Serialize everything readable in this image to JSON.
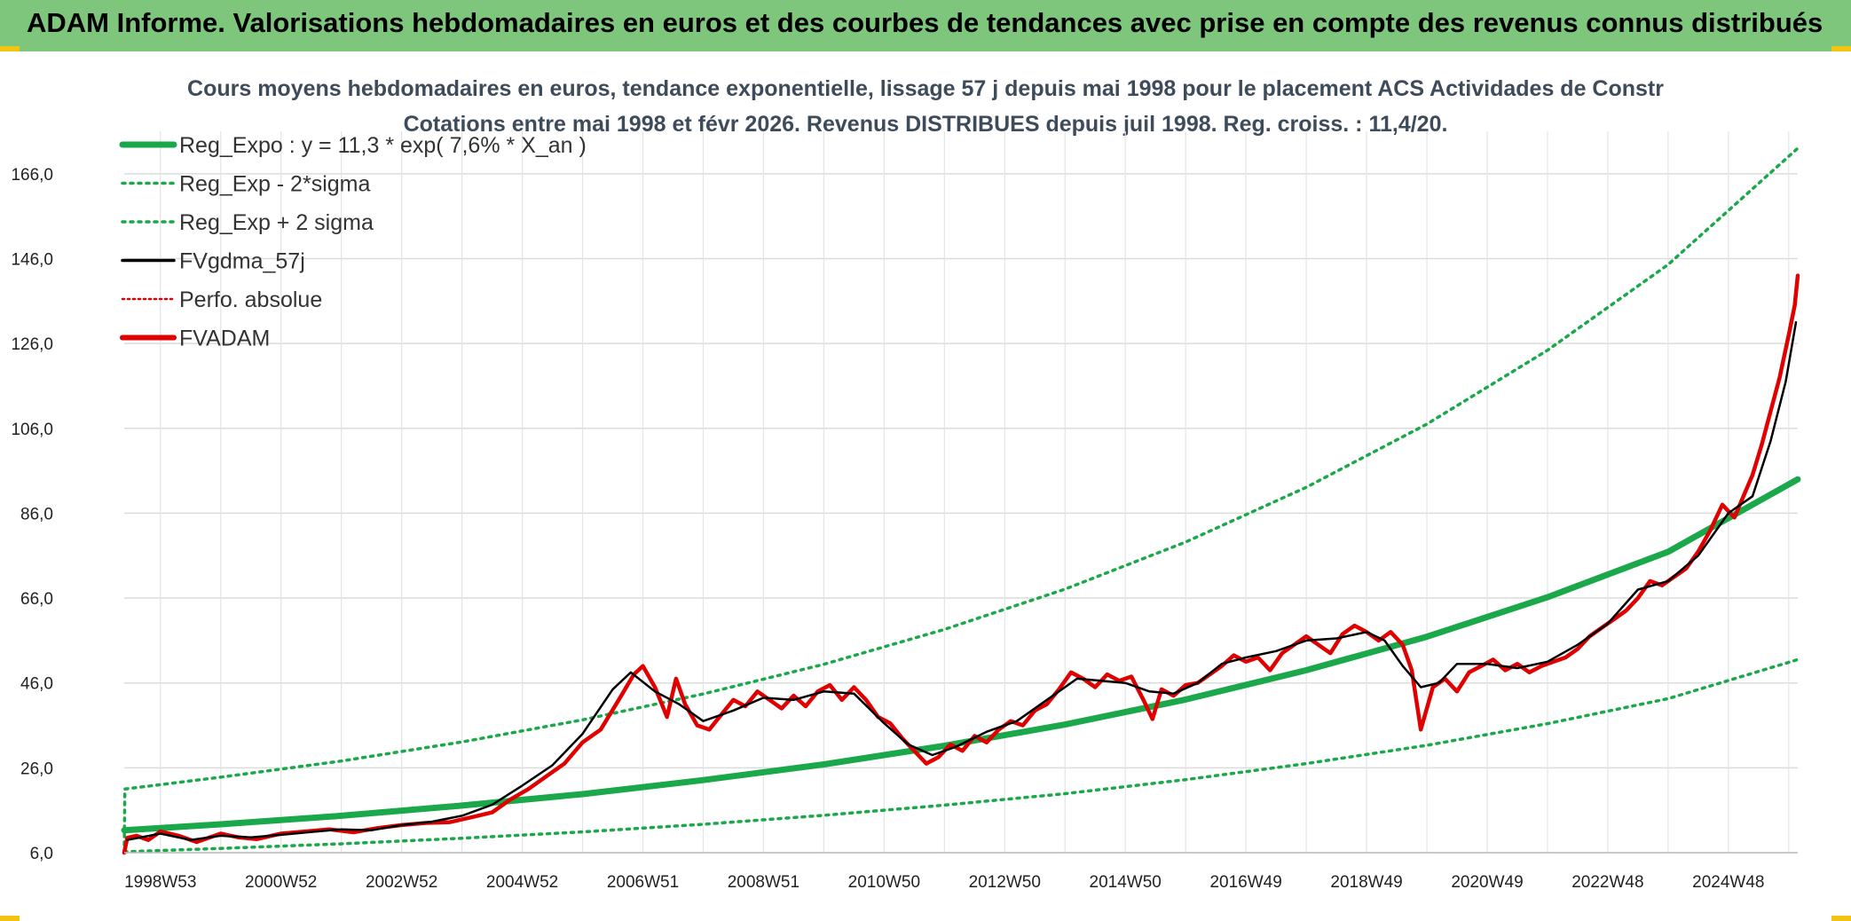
{
  "header": {
    "title": "ADAM Informe. Valorisations hebdomadaires en euros et des courbes de tendances avec prise en compte des revenus connus distribués"
  },
  "chart_data": {
    "type": "line",
    "title": "Cours moyens hebdomadaires en euros, tendance exponentielle, lissage 57 j depuis mai 1998 pour le placement ACS Actividades de Constr",
    "subtitle": "Cotations entre mai 1998 et févr 2026. Revenus DISTRIBUES depuis juil 1998. Reg. croiss. : 11,4/20.",
    "xlabel": "",
    "ylabel": "",
    "xlim": [
      1998.4,
      2026.15
    ],
    "ylim": [
      6,
      176
    ],
    "y_ticks": [
      6,
      26,
      46,
      66,
      86,
      106,
      126,
      146,
      166
    ],
    "y_tick_labels": [
      "6,0",
      "26,0",
      "46,0",
      "66,0",
      "86,0",
      "106,0",
      "126,0",
      "146,0",
      "166,0"
    ],
    "x_ticks": [
      1999.0,
      2001.0,
      2003.0,
      2005.0,
      2007.0,
      2009.0,
      2011.0,
      2013.0,
      2015.0,
      2017.0,
      2019.0,
      2021.0,
      2023.0,
      2025.0
    ],
    "x_tick_labels": [
      "1998W53",
      "2000W52",
      "2002W52",
      "2004W52",
      "2006W51",
      "2008W51",
      "2010W50",
      "2012W50",
      "2014W50",
      "2016W49",
      "2018W49",
      "2020W49",
      "2022W48",
      "2024W48"
    ],
    "grid": true,
    "legend_position": "top-left",
    "legend": [
      {
        "name": "Reg_Expo : y = 11,3 * exp( 7,6% *  X_an )",
        "color": "#1aa84a",
        "style": "solid-thick"
      },
      {
        "name": "Reg_Exp - 2*sigma",
        "color": "#1aa84a",
        "style": "dotted"
      },
      {
        "name": "Reg_Exp + 2 sigma",
        "color": "#1aa84a",
        "style": "dotted"
      },
      {
        "name": "FVgdma_57j",
        "color": "#000000",
        "style": "solid"
      },
      {
        "name": "Perfo. absolue",
        "color": "#e00000",
        "style": "dotted"
      },
      {
        "name": "FVADAM",
        "color": "#e00000",
        "style": "solid-thick"
      }
    ],
    "series": [
      {
        "name": "Reg_Expo : y = 11,3 * exp( 7,6% *  X_an )",
        "x": [
          1998.4,
          2000,
          2002,
          2004,
          2006,
          2008,
          2010,
          2012,
          2014,
          2016,
          2018,
          2020,
          2022,
          2024,
          2026.15
        ],
        "values": [
          11.3,
          12.7,
          14.7,
          17.1,
          19.8,
          23.1,
          26.8,
          31.2,
          36.2,
          42.1,
          49.0,
          56.9,
          66.2,
          76.9,
          94.0
        ]
      },
      {
        "name": "Reg_Exp - 2*sigma",
        "x": [
          1998.4,
          2000,
          2002,
          2004,
          2006,
          2008,
          2010,
          2012,
          2014,
          2016,
          2018,
          2020,
          2022,
          2024,
          2026.15
        ],
        "values": [
          6.2,
          7.0,
          8.1,
          9.4,
          10.9,
          12.7,
          14.8,
          17.2,
          19.9,
          23.2,
          27.0,
          31.3,
          36.4,
          42.3,
          51.5
        ]
      },
      {
        "name": "Reg_Exp + 2 sigma",
        "x": [
          1998.4,
          1998.41,
          2000,
          2002,
          2004,
          2006,
          2008,
          2010,
          2012,
          2014,
          2016,
          2018,
          2020,
          2022,
          2024,
          2026.15
        ],
        "values": [
          6.0,
          21.0,
          23.8,
          27.6,
          32.1,
          37.3,
          43.4,
          50.4,
          58.6,
          68.1,
          79.2,
          92.1,
          107.0,
          124.4,
          144.6,
          172.0
        ]
      },
      {
        "name": "FVgdma_57j",
        "x": [
          1998.45,
          1999.0,
          1999.5,
          2000.0,
          2000.5,
          2001.0,
          2001.5,
          2002.0,
          2002.5,
          2003.0,
          2003.5,
          2004.0,
          2004.5,
          2005.0,
          2005.5,
          2006.0,
          2006.5,
          2006.8,
          2007.2,
          2007.6,
          2008.0,
          2008.5,
          2009.0,
          2009.5,
          2010.0,
          2010.5,
          2011.0,
          2011.4,
          2011.8,
          2012.2,
          2012.7,
          2013.2,
          2013.7,
          2014.2,
          2014.6,
          2015.0,
          2015.4,
          2015.8,
          2016.2,
          2016.6,
          2017.0,
          2017.5,
          2018.0,
          2018.5,
          2019.0,
          2019.3,
          2019.6,
          2019.9,
          2020.2,
          2020.5,
          2021.0,
          2021.5,
          2022.0,
          2022.5,
          2023.0,
          2023.5,
          2024.0,
          2024.5,
          2025.0,
          2025.4,
          2025.7,
          2025.95,
          2026.12
        ],
        "values": [
          9.0,
          10.5,
          9.0,
          10.0,
          9.6,
          10.2,
          10.9,
          11.5,
          11.3,
          12.5,
          13.3,
          14.7,
          17.3,
          21.8,
          26.6,
          34.0,
          44.5,
          48.5,
          44.0,
          41.0,
          37.0,
          39.5,
          42.5,
          42.0,
          44.0,
          43.5,
          36.5,
          31.5,
          29.0,
          31.0,
          34.5,
          37.0,
          42.0,
          47.0,
          46.5,
          46.0,
          44.0,
          43.5,
          46.0,
          50.5,
          52.0,
          53.5,
          56.0,
          56.5,
          58.0,
          56.0,
          50.0,
          45.0,
          46.0,
          50.5,
          50.5,
          49.5,
          51.0,
          55.0,
          60.0,
          68.0,
          70.0,
          76.0,
          86.0,
          90.0,
          103.0,
          117.0,
          131.0
        ]
      },
      {
        "name": "FVADAM",
        "x": [
          1998.4,
          1998.45,
          1998.6,
          1998.8,
          1999.0,
          1999.3,
          1999.6,
          1999.8,
          2000.0,
          2000.3,
          2000.6,
          2001.0,
          2001.4,
          2001.8,
          2002.2,
          2002.6,
          2003.0,
          2003.4,
          2003.8,
          2004.2,
          2004.5,
          2004.8,
          2005.1,
          2005.4,
          2005.7,
          2006.0,
          2006.3,
          2006.6,
          2006.85,
          2007.0,
          2007.2,
          2007.4,
          2007.55,
          2007.7,
          2007.9,
          2008.1,
          2008.3,
          2008.5,
          2008.7,
          2008.9,
          2009.1,
          2009.3,
          2009.5,
          2009.7,
          2009.9,
          2010.1,
          2010.3,
          2010.5,
          2010.7,
          2010.9,
          2011.1,
          2011.3,
          2011.5,
          2011.7,
          2011.9,
          2012.1,
          2012.3,
          2012.5,
          2012.7,
          2012.9,
          2013.1,
          2013.3,
          2013.5,
          2013.7,
          2013.9,
          2014.1,
          2014.3,
          2014.5,
          2014.7,
          2014.9,
          2015.1,
          2015.3,
          2015.45,
          2015.6,
          2015.8,
          2016.0,
          2016.2,
          2016.4,
          2016.6,
          2016.8,
          2017.0,
          2017.2,
          2017.4,
          2017.6,
          2017.8,
          2018.0,
          2018.2,
          2018.4,
          2018.6,
          2018.8,
          2019.0,
          2019.2,
          2019.4,
          2019.6,
          2019.75,
          2019.9,
          2020.1,
          2020.3,
          2020.5,
          2020.7,
          2020.9,
          2021.1,
          2021.3,
          2021.5,
          2021.7,
          2021.9,
          2022.1,
          2022.3,
          2022.5,
          2022.7,
          2022.9,
          2023.1,
          2023.3,
          2023.5,
          2023.7,
          2023.9,
          2024.1,
          2024.3,
          2024.5,
          2024.7,
          2024.9,
          2025.1,
          2025.25,
          2025.4,
          2025.55,
          2025.7,
          2025.85,
          2026.0,
          2026.1,
          2026.15
        ],
        "values": [
          6.0,
          9.5,
          10.0,
          9.0,
          11.0,
          10.0,
          8.5,
          9.5,
          10.5,
          9.6,
          9.2,
          10.5,
          11.0,
          11.5,
          10.8,
          11.8,
          12.5,
          13.0,
          13.2,
          14.5,
          15.5,
          18.5,
          21.0,
          24.0,
          27.0,
          32.0,
          35.0,
          42.0,
          48.0,
          50.0,
          45.0,
          38.0,
          47.0,
          41.0,
          36.0,
          35.0,
          38.5,
          42.0,
          40.5,
          44.0,
          42.0,
          40.0,
          43.0,
          40.5,
          44.0,
          45.5,
          42.0,
          45.0,
          42.0,
          38.0,
          36.5,
          33.0,
          30.0,
          27.0,
          28.5,
          31.5,
          30.0,
          33.5,
          32.0,
          35.0,
          37.0,
          36.0,
          39.5,
          41.0,
          44.5,
          48.5,
          47.0,
          45.0,
          48.0,
          46.5,
          47.5,
          42.0,
          37.5,
          44.5,
          43.0,
          45.5,
          46.0,
          48.0,
          50.0,
          52.5,
          51.0,
          52.0,
          49.0,
          53.0,
          55.0,
          57.0,
          55.0,
          53.0,
          57.5,
          59.5,
          58.0,
          56.0,
          58.0,
          55.0,
          49.0,
          35.0,
          45.0,
          47.0,
          44.0,
          48.5,
          50.0,
          51.5,
          49.0,
          50.5,
          48.5,
          50.0,
          51.0,
          52.0,
          54.0,
          57.0,
          59.0,
          61.0,
          63.0,
          66.0,
          70.0,
          69.0,
          71.0,
          73.0,
          77.0,
          82.0,
          88.0,
          85.0,
          90.0,
          95.0,
          102.0,
          110.0,
          118.0,
          128.0,
          135.0,
          142.0
        ]
      }
    ]
  }
}
